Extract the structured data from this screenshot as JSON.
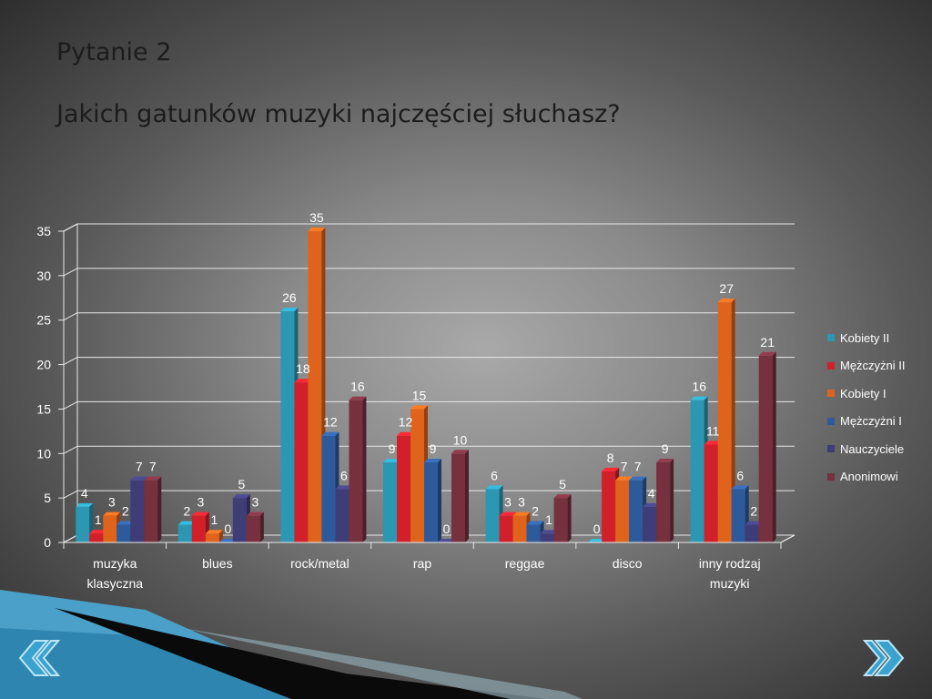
{
  "slide": {
    "title": "Pytanie 2",
    "subtitle": "Jakich gatunków muzyki najczęściej słuchasz?"
  },
  "chart_data": {
    "type": "bar",
    "categories": [
      "muzyka klasyczna",
      "blues",
      "rock/metal",
      "rap",
      "reggae",
      "disco",
      "inny rodzaj muzyki"
    ],
    "category_lines": [
      [
        "muzyka",
        "klasyczna"
      ],
      [
        "blues"
      ],
      [
        "rock/metal"
      ],
      [
        "rap"
      ],
      [
        "reggae"
      ],
      [
        "disco"
      ],
      [
        "inny rodzaj",
        "muzyki"
      ]
    ],
    "series": [
      {
        "name": "Kobiety II",
        "color": "#2b97b3",
        "values": [
          4,
          2,
          26,
          9,
          6,
          0,
          16
        ]
      },
      {
        "name": "Mężczyżni II",
        "color": "#d2202a",
        "values": [
          1,
          3,
          18,
          12,
          3,
          8,
          11
        ]
      },
      {
        "name": "Kobiety I",
        "color": "#e0631c",
        "values": [
          3,
          1,
          35,
          15,
          3,
          7,
          27
        ]
      },
      {
        "name": "Mężczyżni I",
        "color": "#2d5a9a",
        "values": [
          2,
          0,
          12,
          9,
          2,
          7,
          6
        ]
      },
      {
        "name": "Nauczyciele",
        "color": "#3f3d78",
        "values": [
          7,
          5,
          6,
          0,
          1,
          4,
          2
        ]
      },
      {
        "name": "Anonimowi",
        "color": "#76303e",
        "values": [
          7,
          3,
          16,
          10,
          5,
          9,
          21
        ]
      }
    ],
    "ylim": [
      0,
      35
    ],
    "yticks": [
      0,
      5,
      10,
      15,
      20,
      25,
      30,
      35
    ],
    "grid": true,
    "legend_position": "right",
    "data_labels": true
  },
  "navigation": {
    "prev_icon": "chevron-left-icon",
    "next_icon": "chevron-right-icon"
  }
}
